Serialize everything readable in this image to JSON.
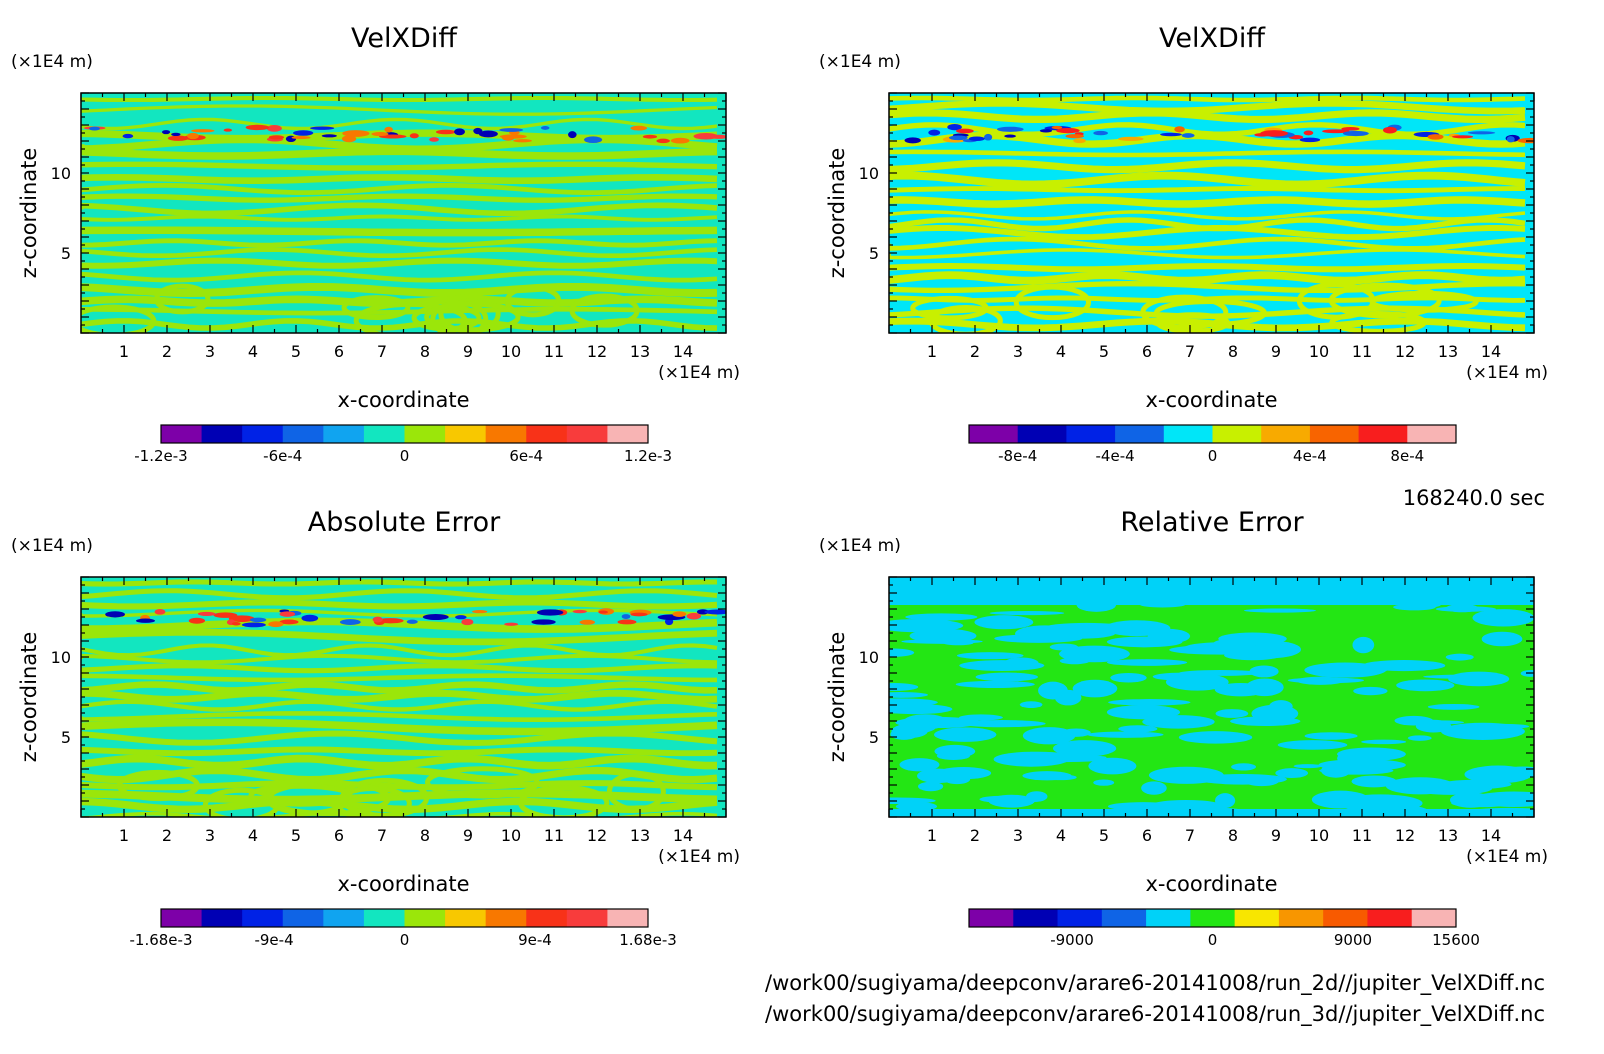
{
  "time_label": "168240.0 sec",
  "file_paths": [
    "/work00/sugiyama/deepconv/arare6-20141008/run_2d//jupiter_VelXDiff.nc",
    "/work00/sugiyama/deepconv/arare6-20141008/run_3d//jupiter_VelXDiff.nc"
  ],
  "chart_data": [
    {
      "type": "heatmap",
      "title": "VelXDiff",
      "xlabel": "x-coordinate",
      "ylabel": "z-coordinate",
      "x_unit": "(×1E4 m)",
      "y_unit": "(×1E4 m)",
      "xlim": [
        0,
        15
      ],
      "ylim": [
        0,
        15
      ],
      "x_ticks": [
        "1",
        "2",
        "3",
        "4",
        "5",
        "6",
        "7",
        "8",
        "9",
        "10",
        "11",
        "12",
        "13",
        "14"
      ],
      "y_ticks": [
        "5",
        "10"
      ],
      "colorbar": {
        "colors": [
          "#7d00a8",
          "#0000b4",
          "#0022e6",
          "#0f64e6",
          "#10a4f0",
          "#12e6c0",
          "#9be60a",
          "#f8c800",
          "#f87800",
          "#f83218",
          "#f83c3c",
          "#f8b4b4"
        ],
        "tick_labels": [
          "-1.2e-3",
          "-6e-4",
          "0",
          "6e-4",
          "1.2e-3"
        ],
        "range": [
          -0.0012,
          0.0012
        ]
      },
      "field": {
        "dominant": [
          "#12e6c0",
          "#9be60a"
        ],
        "wave_band_z": 12.5
      }
    },
    {
      "type": "heatmap",
      "title": "VelXDiff",
      "xlabel": "x-coordinate",
      "ylabel": "z-coordinate",
      "x_unit": "(×1E4 m)",
      "y_unit": "(×1E4 m)",
      "xlim": [
        0,
        15
      ],
      "ylim": [
        0,
        15
      ],
      "x_ticks": [
        "1",
        "2",
        "3",
        "4",
        "5",
        "6",
        "7",
        "8",
        "9",
        "10",
        "11",
        "12",
        "13",
        "14"
      ],
      "y_ticks": [
        "5",
        "10"
      ],
      "colorbar": {
        "colors": [
          "#7d00a8",
          "#0000b4",
          "#0022e6",
          "#0f64e6",
          "#00e6f8",
          "#c8f000",
          "#f8aa00",
          "#f86400",
          "#f81e1e",
          "#f8b4b4"
        ],
        "tick_labels": [
          "-8e-4",
          "-4e-4",
          "0",
          "4e-4",
          "8e-4"
        ],
        "range": [
          -0.001,
          0.001
        ]
      },
      "field": {
        "dominant": [
          "#00e6f8",
          "#c8f000"
        ],
        "wave_band_z": 12.5
      }
    },
    {
      "type": "heatmap",
      "title": "Absolute Error",
      "xlabel": "x-coordinate",
      "ylabel": "z-coordinate",
      "x_unit": "(×1E4 m)",
      "y_unit": "(×1E4 m)",
      "xlim": [
        0,
        15
      ],
      "ylim": [
        0,
        15
      ],
      "x_ticks": [
        "1",
        "2",
        "3",
        "4",
        "5",
        "6",
        "7",
        "8",
        "9",
        "10",
        "11",
        "12",
        "13",
        "14"
      ],
      "y_ticks": [
        "5",
        "10"
      ],
      "colorbar": {
        "colors": [
          "#7d00a8",
          "#0000b4",
          "#0022e6",
          "#0f64e6",
          "#10a4f0",
          "#12e6c0",
          "#9be60a",
          "#f8c800",
          "#f87800",
          "#f83218",
          "#f83c3c",
          "#f8b4b4"
        ],
        "tick_labels": [
          "-1.68e-3",
          "-9e-4",
          "0",
          "9e-4",
          "1.68e-3"
        ],
        "range": [
          -0.00168,
          0.00168
        ]
      },
      "field": {
        "dominant": [
          "#12e6c0",
          "#9be60a"
        ],
        "wave_band_z": 12.5
      }
    },
    {
      "type": "heatmap",
      "title": "Relative Error",
      "xlabel": "x-coordinate",
      "ylabel": "z-coordinate",
      "x_unit": "(×1E4 m)",
      "y_unit": "(×1E4 m)",
      "xlim": [
        0,
        15
      ],
      "ylim": [
        0,
        15
      ],
      "x_ticks": [
        "1",
        "2",
        "3",
        "4",
        "5",
        "6",
        "7",
        "8",
        "9",
        "10",
        "11",
        "12",
        "13",
        "14"
      ],
      "y_ticks": [
        "5",
        "10"
      ],
      "colorbar": {
        "colors": [
          "#7d00a8",
          "#0000b4",
          "#0022e6",
          "#0f64e6",
          "#00d2f8",
          "#23e614",
          "#f8e600",
          "#f89600",
          "#f85a00",
          "#f81e1e",
          "#f8b4b4"
        ],
        "tick_labels": [
          "-9000",
          "0",
          "9000",
          "15600"
        ],
        "range": [
          -15600,
          15600
        ]
      },
      "field": {
        "dominant": [
          "#23e614",
          "#00d2f8"
        ],
        "wave_band_z": null
      }
    }
  ]
}
